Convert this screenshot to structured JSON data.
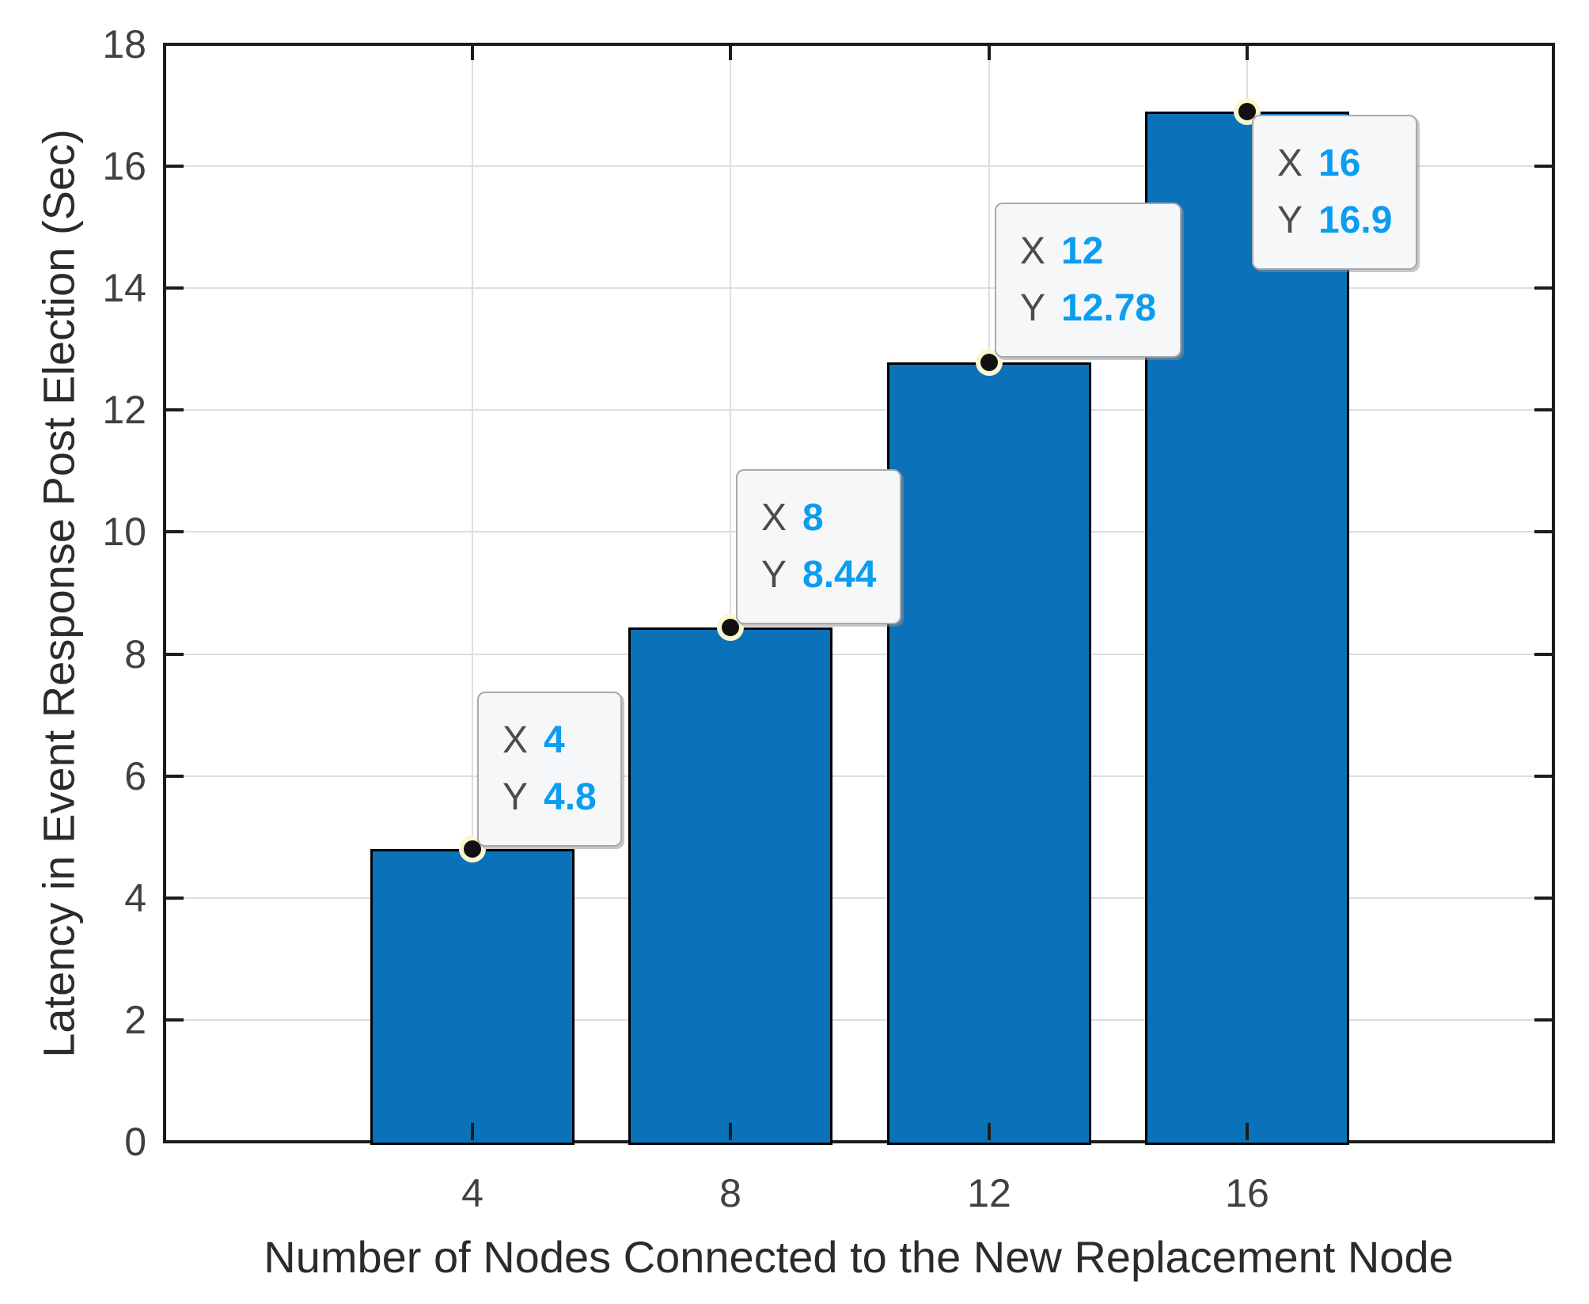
{
  "chart_data": {
    "type": "bar",
    "title": "",
    "xlabel": "Number of Nodes Connected to the New Replacement Node",
    "ylabel": "Latency in Event Response Post Election (Sec)",
    "categories": [
      4,
      8,
      12,
      16
    ],
    "values": [
      4.8,
      8.44,
      12.78,
      16.9
    ],
    "ylim": [
      0,
      18
    ],
    "y_ticks": [
      0,
      2,
      4,
      6,
      8,
      10,
      12,
      14,
      16,
      18
    ],
    "x_tick_labels": [
      "4",
      "8",
      "12",
      "16"
    ],
    "grid": true,
    "legend": null,
    "datatips": [
      {
        "x_label": "X",
        "x_text": "4",
        "y_label": "Y",
        "y_text": "4.8",
        "placement": "above"
      },
      {
        "x_label": "X",
        "x_text": "8",
        "y_label": "Y",
        "y_text": "8.44",
        "placement": "above"
      },
      {
        "x_label": "X",
        "x_text": "12",
        "y_label": "Y",
        "y_text": "12.78",
        "placement": "above"
      },
      {
        "x_label": "X",
        "x_text": "16",
        "y_label": "Y",
        "y_text": "16.9",
        "placement": "below"
      }
    ]
  },
  "colors": {
    "bar_fill": "#0b72b9",
    "bar_edge": "#000000",
    "axis": "#1c1c1c",
    "grid": "#dedede",
    "tick_label": "#414141",
    "axis_label": "#2b2b2b",
    "datatip_bg": "#f6f7f9",
    "datatip_border": "#a9a9ad",
    "datatip_label": "#4c4c4c",
    "datatip_value": "#0a9df0",
    "marker": "#111111",
    "marker_halo": "#faf6d0"
  }
}
